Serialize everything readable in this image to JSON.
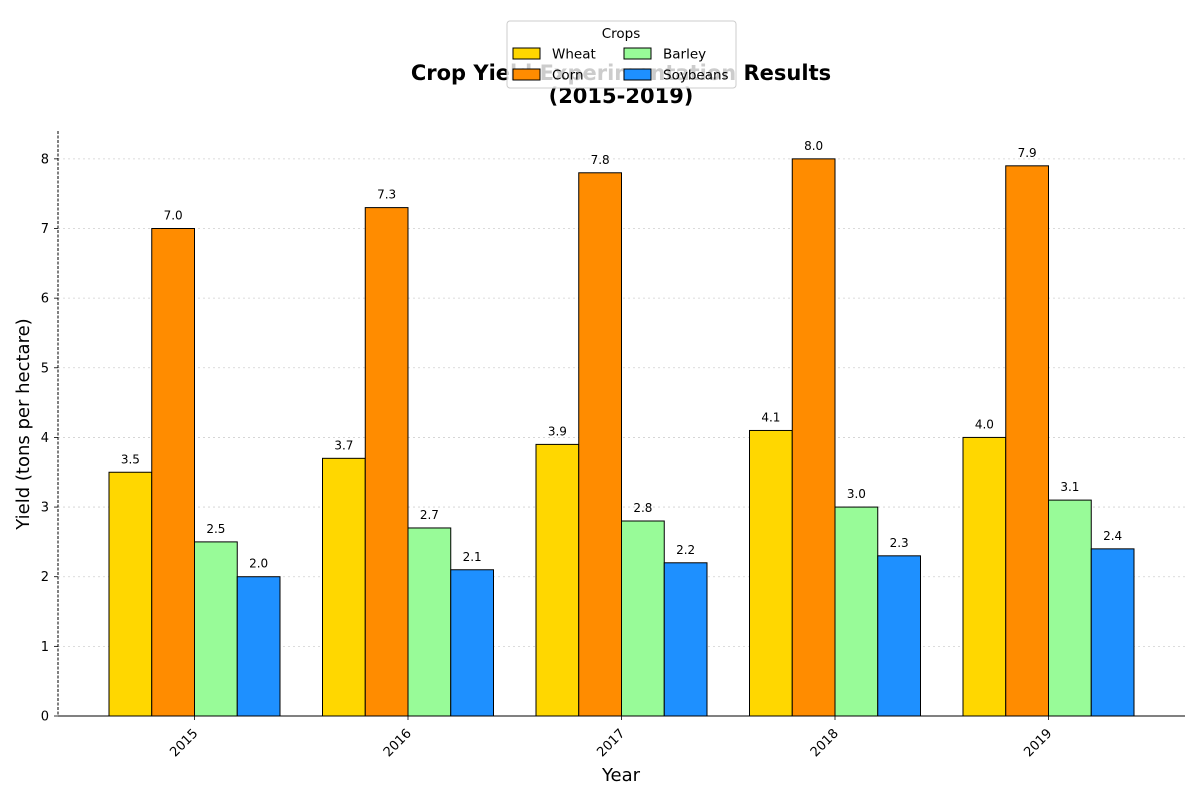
{
  "chart_data": {
    "type": "bar",
    "title": "Crop Yield Experimentation Results",
    "subtitle": "(2015-2019)",
    "xlabel": "Year",
    "ylabel": "Yield (tons per hectare)",
    "categories": [
      "2015",
      "2016",
      "2017",
      "2018",
      "2019"
    ],
    "series": [
      {
        "name": "Wheat",
        "color": "#FFD700",
        "values": [
          3.5,
          3.7,
          3.9,
          4.1,
          4.0
        ]
      },
      {
        "name": "Corn",
        "color": "#FF8C00",
        "values": [
          7.0,
          7.3,
          7.8,
          8.0,
          7.9
        ]
      },
      {
        "name": "Barley",
        "color": "#98FB98",
        "values": [
          2.5,
          2.7,
          2.8,
          3.0,
          3.1
        ]
      },
      {
        "name": "Soybeans",
        "color": "#1E90FF",
        "values": [
          2.0,
          2.1,
          2.2,
          2.3,
          2.4
        ]
      }
    ],
    "ylim": [
      0,
      8.4
    ],
    "yticks": [
      "0",
      "1",
      "2",
      "3",
      "4",
      "5",
      "6",
      "7",
      "8"
    ],
    "grid": true,
    "legend": {
      "title": "Crops",
      "placement": "top-center",
      "columns": 2
    }
  }
}
